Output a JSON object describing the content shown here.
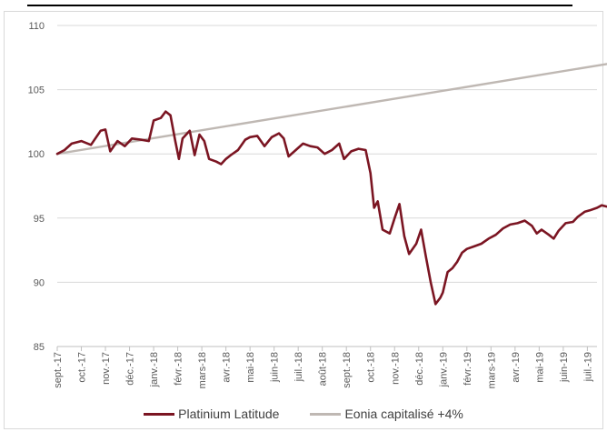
{
  "chart_data": {
    "type": "line",
    "title": "",
    "xlabel": "",
    "ylabel": "",
    "ylim": [
      85,
      110
    ],
    "yticks": [
      85,
      90,
      95,
      100,
      105,
      110
    ],
    "grid": true,
    "legend_position": "bottom",
    "x_tick_labels": [
      "sept.-17",
      "oct.-17",
      "nov.-17",
      "déc.-17",
      "janv.-18",
      "févr.-18",
      "mars-18",
      "avr.-18",
      "mai-18",
      "juin-18",
      "juil.-18",
      "août-18",
      "sept.-18",
      "oct.-18",
      "nov.-18",
      "déc.-18",
      "janv.-19",
      "févr.-19",
      "mars-19",
      "avr.-19",
      "mai-19",
      "juin-19",
      "juil.-19"
    ],
    "series": [
      {
        "name": "Platinium Latitude",
        "color": "#7b1522",
        "points": [
          [
            0,
            100.0
          ],
          [
            0.3,
            100.3
          ],
          [
            0.6,
            100.8
          ],
          [
            1.0,
            101.0
          ],
          [
            1.4,
            100.7
          ],
          [
            1.8,
            101.8
          ],
          [
            2.0,
            101.9
          ],
          [
            2.2,
            100.2
          ],
          [
            2.5,
            101.0
          ],
          [
            2.8,
            100.6
          ],
          [
            3.1,
            101.2
          ],
          [
            3.5,
            101.1
          ],
          [
            3.8,
            101.0
          ],
          [
            4.0,
            102.6
          ],
          [
            4.3,
            102.8
          ],
          [
            4.5,
            103.3
          ],
          [
            4.7,
            103.0
          ],
          [
            4.9,
            101.0
          ],
          [
            5.05,
            99.6
          ],
          [
            5.2,
            101.2
          ],
          [
            5.5,
            101.8
          ],
          [
            5.7,
            99.9
          ],
          [
            5.9,
            101.5
          ],
          [
            6.1,
            101.0
          ],
          [
            6.3,
            99.6
          ],
          [
            6.6,
            99.4
          ],
          [
            6.8,
            99.2
          ],
          [
            7.0,
            99.6
          ],
          [
            7.2,
            99.9
          ],
          [
            7.5,
            100.3
          ],
          [
            7.8,
            101.1
          ],
          [
            8.0,
            101.3
          ],
          [
            8.3,
            101.4
          ],
          [
            8.6,
            100.6
          ],
          [
            8.9,
            101.3
          ],
          [
            9.2,
            101.6
          ],
          [
            9.4,
            101.2
          ],
          [
            9.6,
            99.8
          ],
          [
            9.9,
            100.3
          ],
          [
            10.2,
            100.8
          ],
          [
            10.5,
            100.6
          ],
          [
            10.8,
            100.5
          ],
          [
            11.1,
            100.0
          ],
          [
            11.4,
            100.3
          ],
          [
            11.7,
            100.8
          ],
          [
            11.9,
            99.6
          ],
          [
            12.2,
            100.2
          ],
          [
            12.5,
            100.4
          ],
          [
            12.8,
            100.3
          ],
          [
            13.0,
            98.5
          ],
          [
            13.15,
            95.8
          ],
          [
            13.3,
            96.3
          ],
          [
            13.5,
            94.1
          ],
          [
            13.8,
            93.8
          ],
          [
            14.0,
            95.0
          ],
          [
            14.2,
            96.1
          ],
          [
            14.4,
            93.6
          ],
          [
            14.6,
            92.2
          ],
          [
            14.9,
            93.0
          ],
          [
            15.1,
            94.1
          ],
          [
            15.3,
            92.0
          ],
          [
            15.5,
            90.0
          ],
          [
            15.7,
            88.3
          ],
          [
            15.9,
            88.8
          ],
          [
            16.0,
            89.2
          ],
          [
            16.2,
            90.8
          ],
          [
            16.4,
            91.1
          ],
          [
            16.6,
            91.6
          ],
          [
            16.8,
            92.3
          ],
          [
            17.0,
            92.6
          ],
          [
            17.3,
            92.8
          ],
          [
            17.6,
            93.0
          ],
          [
            17.9,
            93.4
          ],
          [
            18.2,
            93.7
          ],
          [
            18.5,
            94.2
          ],
          [
            18.8,
            94.5
          ],
          [
            19.1,
            94.6
          ],
          [
            19.4,
            94.8
          ],
          [
            19.7,
            94.4
          ],
          [
            19.9,
            93.8
          ],
          [
            20.1,
            94.1
          ],
          [
            20.4,
            93.7
          ],
          [
            20.6,
            93.4
          ],
          [
            20.8,
            94.0
          ],
          [
            21.1,
            94.6
          ],
          [
            21.4,
            94.7
          ],
          [
            21.6,
            95.1
          ],
          [
            21.9,
            95.5
          ],
          [
            22.1,
            95.6
          ],
          [
            22.4,
            95.8
          ],
          [
            22.6,
            96.0
          ],
          [
            22.8,
            95.9
          ]
        ]
      },
      {
        "name": "Eonia capitalisé +4%",
        "color": "#bfb8b3",
        "points": [
          [
            0,
            100.0
          ],
          [
            22.8,
            107.0
          ]
        ]
      }
    ]
  }
}
